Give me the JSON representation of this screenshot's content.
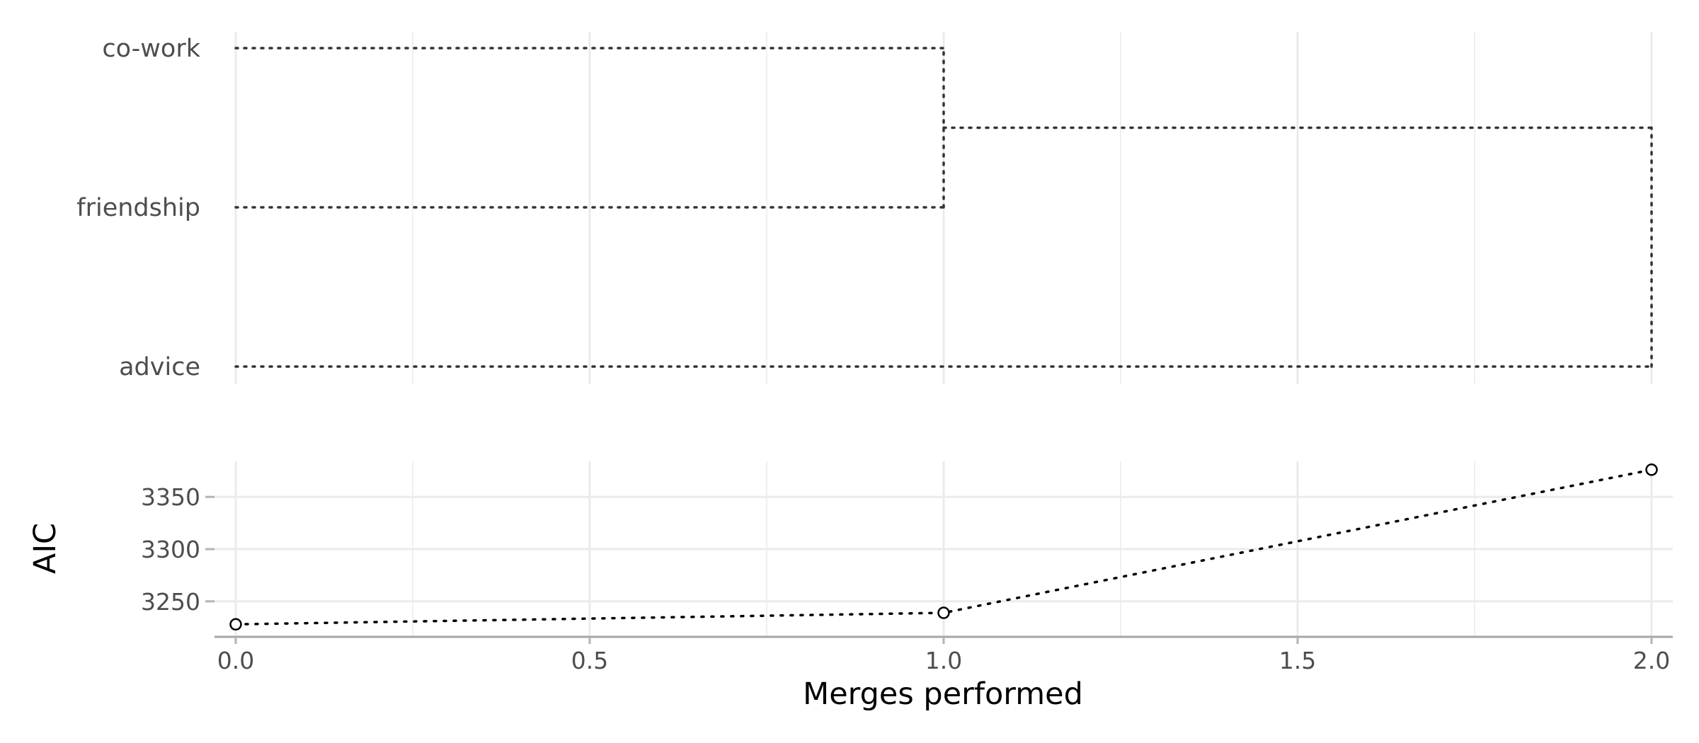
{
  "chart_data": [
    {
      "type": "dendrogram",
      "leaves": [
        "advice",
        "friendship",
        "co-work"
      ],
      "merges": [
        {
          "children": [
            "friendship",
            "co-work"
          ],
          "at": 1.0
        },
        {
          "children": [
            "advice",
            "friendship+co-work"
          ],
          "at": 2.0
        }
      ],
      "xlim": [
        0,
        2
      ],
      "grid": true,
      "line_style": "dotted"
    },
    {
      "type": "line",
      "x": [
        0.0,
        1.0,
        2.0
      ],
      "y": [
        3228,
        3239,
        3376
      ],
      "xlabel": "Merges performed",
      "ylabel": "AIC",
      "x_ticks": [
        "0.0",
        "0.5",
        "1.0",
        "1.5",
        "2.0"
      ],
      "y_ticks": [
        "3250",
        "3300",
        "3350"
      ],
      "xlim": [
        0,
        2
      ],
      "ylim": [
        3216,
        3384
      ],
      "grid": true,
      "line_style": "dotted",
      "markers": "open-circle"
    }
  ]
}
